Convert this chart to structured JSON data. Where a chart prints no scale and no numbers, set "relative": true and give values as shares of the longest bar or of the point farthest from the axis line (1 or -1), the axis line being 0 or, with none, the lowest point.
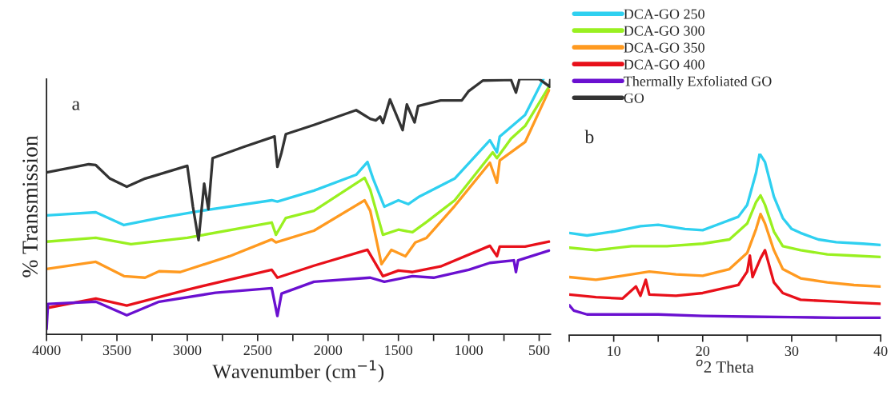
{
  "chart_data": [
    {
      "type": "line",
      "xlabel": "Wavenumber (cm$^{−1}$)",
      "ylabel": "% Transmission",
      "annotations": [
        "a"
      ],
      "xlim": [
        4000,
        420
      ],
      "xticks": [
        4000,
        {
          "value": 3750,
          "label": null
        },
        3500,
        {
          "value": 3250,
          "label": null
        },
        3000,
        {
          "value": 2750,
          "label": null
        },
        2500,
        {
          "value": 2250,
          "label": null
        },
        2000,
        {
          "value": 1750,
          "label": null
        },
        1500,
        {
          "value": 1250,
          "label": null
        },
        1000,
        {
          "value": 750,
          "label": null
        },
        500
      ],
      "relative": true,
      "tick_labels": "x",
      "legend": "top right",
      "series": [
        {
          "name": "DCA-GO 250",
          "color": "#2fd0f0",
          "x": [
            4000,
            3650,
            3450,
            3200,
            2900,
            2400,
            2360,
            2100,
            1800,
            1720,
            1680,
            1600,
            1500,
            1430,
            1350,
            1100,
            850,
            800,
            780,
            600,
            470
          ],
          "values": [
            0.466,
            0.478,
            0.428,
            0.456,
            0.484,
            0.525,
            0.52,
            0.563,
            0.625,
            0.675,
            0.61,
            0.5,
            0.525,
            0.51,
            0.54,
            0.61,
            0.76,
            0.713,
            0.775,
            0.859,
            1.0
          ]
        },
        {
          "name": "DCA-GO 300",
          "color": "#99f020",
          "x": [
            4000,
            3650,
            3400,
            3000,
            2400,
            2370,
            2300,
            2100,
            1740,
            1700,
            1610,
            1500,
            1400,
            1300,
            1100,
            830,
            800,
            700,
            600,
            430
          ],
          "values": [
            0.363,
            0.378,
            0.353,
            0.378,
            0.438,
            0.39,
            0.456,
            0.484,
            0.613,
            0.566,
            0.39,
            0.41,
            0.4,
            0.44,
            0.525,
            0.713,
            0.69,
            0.766,
            0.816,
            0.97
          ]
        },
        {
          "name": "DCA-GO 350",
          "color": "#ff9a20",
          "x": [
            4000,
            3650,
            3450,
            3300,
            3200,
            3050,
            2700,
            2400,
            2370,
            2100,
            1740,
            1700,
            1620,
            1550,
            1450,
            1380,
            1300,
            1100,
            850,
            800,
            780,
            600,
            430
          ],
          "values": [
            0.256,
            0.284,
            0.228,
            0.222,
            0.247,
            0.244,
            0.306,
            0.372,
            0.36,
            0.406,
            0.525,
            0.484,
            0.275,
            0.331,
            0.306,
            0.36,
            0.378,
            0.503,
            0.672,
            0.594,
            0.681,
            0.753,
            0.956
          ]
        },
        {
          "name": "DCA-GO 400",
          "color": "#e8101a",
          "x": [
            4000,
            3650,
            3430,
            3000,
            2400,
            2360,
            2100,
            1720,
            1610,
            1500,
            1400,
            1200,
            850,
            800,
            780,
            600,
            430
          ],
          "values": [
            0.103,
            0.14,
            0.113,
            0.175,
            0.253,
            0.222,
            0.269,
            0.331,
            0.228,
            0.25,
            0.244,
            0.266,
            0.347,
            0.306,
            0.344,
            0.344,
            0.363
          ]
        },
        {
          "name": "Thermally Exfoliated GO",
          "color": "#6a10d0",
          "x": [
            4000,
            3990,
            3650,
            3430,
            3200,
            2800,
            2400,
            2360,
            2330,
            2100,
            1700,
            1600,
            1400,
            1250,
            1000,
            850,
            680,
            665,
            650,
            430
          ],
          "values": [
            0.02,
            0.119,
            0.128,
            0.075,
            0.128,
            0.163,
            0.181,
            0.072,
            0.16,
            0.206,
            0.222,
            0.206,
            0.228,
            0.222,
            0.253,
            0.28,
            0.29,
            0.244,
            0.29,
            0.328
          ]
        },
        {
          "name": "GO",
          "color": "#333333",
          "x": [
            4000,
            3700,
            3650,
            3550,
            3430,
            3300,
            3000,
            2960,
            2920,
            2880,
            2850,
            2820,
            2600,
            2380,
            2360,
            2330,
            2300,
            2100,
            1800,
            1700,
            1660,
            1630,
            1610,
            1560,
            1470,
            1440,
            1385,
            1360,
            1200,
            1050,
            1000,
            900,
            700,
            665,
            640,
            500,
            425,
            420
          ],
          "values": [
            0.634,
            0.666,
            0.663,
            0.61,
            0.578,
            0.61,
            0.66,
            0.5,
            0.369,
            0.59,
            0.49,
            0.69,
            0.734,
            0.775,
            0.656,
            0.713,
            0.784,
            0.82,
            0.878,
            0.844,
            0.838,
            0.853,
            0.828,
            0.92,
            0.8,
            0.9,
            0.83,
            0.894,
            0.916,
            0.916,
            0.953,
            0.994,
            0.997,
            0.947,
            1.0,
            1.0,
            0.97,
            1.0
          ]
        }
      ]
    },
    {
      "type": "line",
      "xlabel": "$^{o}$2 Theta",
      "annotations": [
        "b"
      ],
      "xlim": [
        5,
        40
      ],
      "xticks": [
        {
          "value": 5,
          "label": null
        },
        10,
        {
          "value": 15,
          "label": null
        },
        20,
        {
          "value": 25,
          "label": null
        },
        30,
        {
          "value": 35,
          "label": null
        },
        40
      ],
      "relative": true,
      "tick_labels": "x",
      "series": [
        {
          "color": "#2fd0f0",
          "x": [
            5,
            7,
            10,
            13,
            15,
            18,
            20,
            22,
            24,
            25,
            26,
            26.4,
            27,
            28,
            29,
            30,
            31,
            33,
            35,
            38,
            40
          ],
          "values": [
            0.563,
            0.549,
            0.571,
            0.6,
            0.608,
            0.585,
            0.578,
            0.615,
            0.652,
            0.718,
            0.895,
            1.0,
            0.954,
            0.763,
            0.645,
            0.585,
            0.563,
            0.527,
            0.512,
            0.504,
            0.497
          ]
        },
        {
          "color": "#99f020",
          "x": [
            5,
            8,
            12,
            16,
            20,
            23,
            25,
            26,
            26.5,
            27,
            28,
            29,
            31,
            34,
            37,
            40
          ],
          "values": [
            0.482,
            0.468,
            0.49,
            0.49,
            0.504,
            0.527,
            0.615,
            0.733,
            0.77,
            0.718,
            0.571,
            0.49,
            0.468,
            0.445,
            0.438,
            0.431
          ]
        },
        {
          "color": "#ff9a20",
          "x": [
            5,
            8,
            11,
            14,
            17,
            20,
            23,
            25,
            26,
            26.5,
            27,
            28,
            29,
            31,
            34,
            37,
            40
          ],
          "values": [
            0.32,
            0.305,
            0.327,
            0.35,
            0.335,
            0.327,
            0.364,
            0.453,
            0.585,
            0.667,
            0.615,
            0.468,
            0.364,
            0.313,
            0.291,
            0.276,
            0.268
          ]
        },
        {
          "color": "#e8101a",
          "x": [
            5,
            8,
            11,
            12.5,
            13,
            13.6,
            14,
            17,
            20,
            22,
            24,
            25,
            25.3,
            25.6,
            26.5,
            27,
            28,
            29,
            31,
            34,
            37,
            40
          ],
          "values": [
            0.224,
            0.209,
            0.202,
            0.268,
            0.217,
            0.305,
            0.224,
            0.217,
            0.232,
            0.254,
            0.276,
            0.35,
            0.438,
            0.32,
            0.423,
            0.468,
            0.291,
            0.232,
            0.195,
            0.187,
            0.18,
            0.173
          ]
        },
        {
          "color": "#6a10d0",
          "x": [
            5,
            5.5,
            7,
            10,
            15,
            20,
            25,
            30,
            35,
            40
          ],
          "values": [
            0.165,
            0.136,
            0.114,
            0.114,
            0.114,
            0.106,
            0.102,
            0.099,
            0.096,
            0.096
          ]
        }
      ]
    }
  ]
}
